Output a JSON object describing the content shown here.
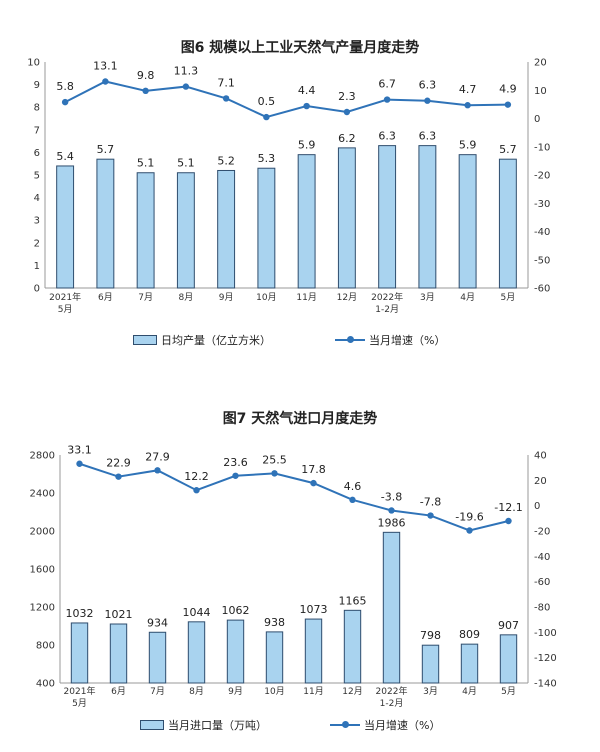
{
  "colors": {
    "bar_fill": "#a9d3ef",
    "bar_stroke": "#2f4d6d",
    "line": "#2f73b8"
  },
  "chart_data": [
    {
      "type": "bar+line",
      "title": "图6  规模以上工业天然气产量月度走势",
      "categories": [
        "2021年\n5月",
        "6月",
        "7月",
        "8月",
        "9月",
        "10月",
        "11月",
        "12月",
        "2022年\n1-2月",
        "3月",
        "4月",
        "5月"
      ],
      "series": [
        {
          "name": "日均产量（亿立方米）",
          "kind": "bar",
          "axis": "left",
          "values": [
            5.4,
            5.7,
            5.1,
            5.1,
            5.2,
            5.3,
            5.9,
            6.2,
            6.3,
            6.3,
            5.9,
            5.7
          ]
        },
        {
          "name": "当月增速（%）",
          "kind": "line",
          "axis": "right",
          "values": [
            5.8,
            13.1,
            9.8,
            11.3,
            7.1,
            0.5,
            4.4,
            2.3,
            6.7,
            6.3,
            4.7,
            4.9
          ]
        }
      ],
      "left_axis": {
        "ylim": [
          0,
          10
        ],
        "ticks": [
          0,
          1,
          2,
          3,
          4,
          5,
          6,
          7,
          8,
          9,
          10
        ]
      },
      "right_axis": {
        "ylim": [
          -60,
          20
        ],
        "ticks": [
          20,
          10,
          0,
          -10,
          -20,
          -30,
          -40,
          -50,
          -60
        ]
      },
      "legend": "bottom"
    },
    {
      "type": "bar+line",
      "title": "图7  天然气进口月度走势",
      "categories": [
        "2021年\n5月",
        "6月",
        "7月",
        "8月",
        "9月",
        "10月",
        "11月",
        "12月",
        "2022年\n1-2月",
        "3月",
        "4月",
        "5月"
      ],
      "series": [
        {
          "name": "当月进口量（万吨）",
          "kind": "bar",
          "axis": "left",
          "values": [
            1032,
            1021,
            934,
            1044,
            1062,
            938,
            1073,
            1165,
            1986,
            798,
            809,
            907
          ]
        },
        {
          "name": "当月增速（%）",
          "kind": "line",
          "axis": "right",
          "values": [
            33.1,
            22.9,
            27.9,
            12.2,
            23.6,
            25.5,
            17.8,
            4.6,
            -3.8,
            -7.8,
            -19.6,
            -12.1
          ]
        }
      ],
      "left_axis": {
        "ylim": [
          400,
          2800
        ],
        "ticks": [
          400,
          800,
          1200,
          1600,
          2000,
          2400,
          2800
        ]
      },
      "right_axis": {
        "ylim": [
          -140,
          40
        ],
        "ticks": [
          40,
          20,
          0,
          -20,
          -40,
          -60,
          -80,
          -100,
          -120,
          -140
        ]
      },
      "legend": "bottom"
    }
  ]
}
